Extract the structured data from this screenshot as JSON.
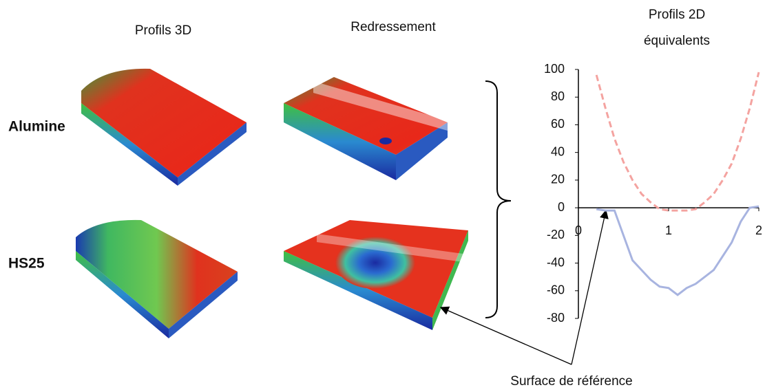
{
  "column_titles": [
    "Profils 3D",
    "Redressement"
  ],
  "chart_title_lines": [
    "Profils 2D",
    "équivalents"
  ],
  "row_labels": [
    "Alumine",
    "HS25"
  ],
  "annotation": "Surface de référence",
  "chart_data": {
    "type": "line",
    "x": [
      0.2,
      0.3,
      0.4,
      0.5,
      0.6,
      0.7,
      0.8,
      0.9,
      1.0,
      1.1,
      1.2,
      1.3,
      1.4,
      1.5,
      1.6,
      1.7,
      1.8,
      1.9,
      2.0
    ],
    "series": [
      {
        "color": "#f4a3a0",
        "dashed": true,
        "values": [
          96,
          72,
          50,
          33,
          20,
          10,
          4,
          -1,
          -2,
          -2,
          -2,
          -1,
          4,
          10,
          20,
          32,
          50,
          72,
          98
        ]
      },
      {
        "color": "#a8b4e0",
        "dashed": false,
        "values": [
          -1,
          -2,
          -2,
          -20,
          -38,
          -45,
          -52,
          -57,
          -58,
          -63,
          -58,
          -55,
          -50,
          -45,
          -35,
          -25,
          -10,
          0,
          1
        ]
      }
    ],
    "xlim": [
      0,
      2
    ],
    "xticks": [
      0,
      1,
      2
    ],
    "ylim": [
      -80,
      100
    ],
    "yticks": [
      -80,
      -60,
      -40,
      -20,
      0,
      20,
      40,
      60,
      80,
      100
    ]
  }
}
